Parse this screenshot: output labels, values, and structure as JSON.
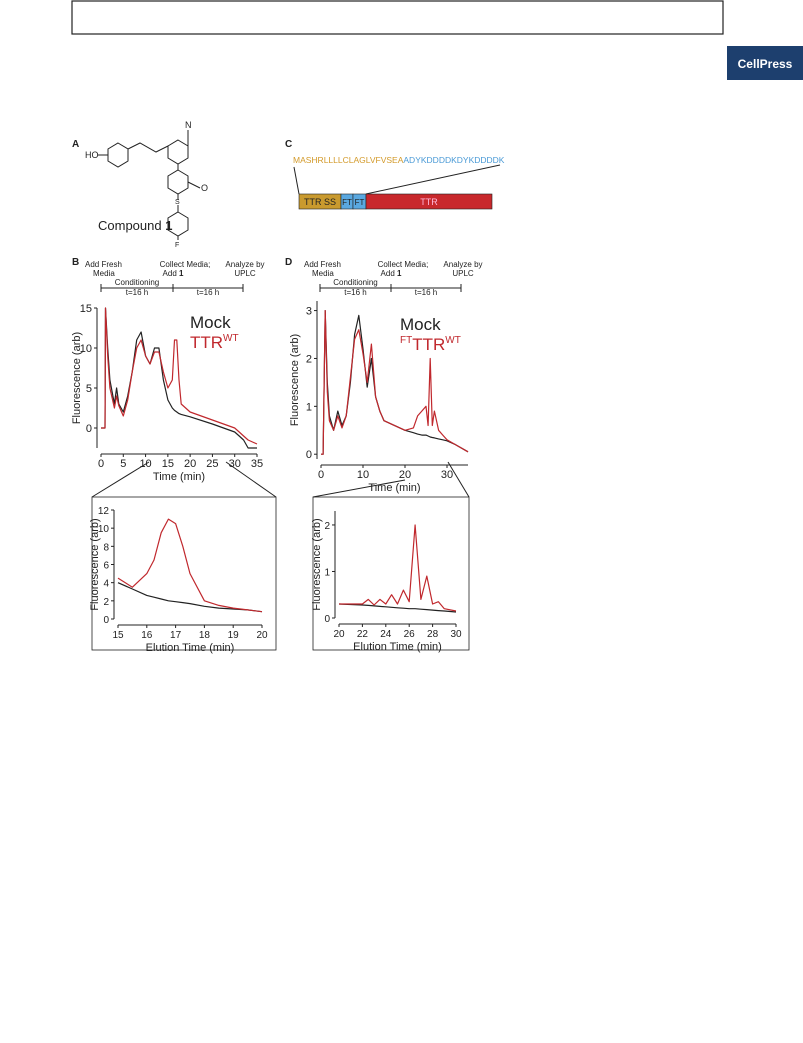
{
  "header": {
    "logo": "CellPress"
  },
  "panels": {
    "a": {
      "letter": "A",
      "atoms": {
        "ho": "HO",
        "n": "N",
        "o": "O",
        "s": "S",
        "f": "F"
      },
      "caption": "Compound",
      "caption_number": "1"
    },
    "c": {
      "letter": "C",
      "sequence_signal": "MASHRLLLLCLAGLVFVSEA",
      "sequence_tag": "ADYKDDDDKDYKDDDDK",
      "segments": [
        "TTR SS",
        "FT",
        "FT",
        "TTR"
      ]
    },
    "b": {
      "letter": "B",
      "timeline": {
        "step1": "Add Fresh",
        "step1b": "Media",
        "step2": "Collect Media;",
        "step2b": "Add",
        "step2c": "1",
        "step3": "Analyze by",
        "step3b": "UPLC",
        "phase1": "Conditioning",
        "duration1": "t=16 h",
        "duration2": "t=16 h"
      }
    },
    "d": {
      "letter": "D",
      "timeline": {
        "step1": "Add Fresh",
        "step1b": "Media",
        "step2": "Collect Media;",
        "step2b": "Add",
        "step2c": "1",
        "step3": "Analyze by",
        "step3b": "UPLC",
        "phase1": "Conditioning",
        "duration1": "t=16 h",
        "duration2": "t=16 h"
      }
    }
  },
  "chart_data": [
    {
      "type": "line",
      "x_label": "Time (min)",
      "y_label": "Fluorescence (arb)",
      "x": [
        0,
        0.9,
        1,
        1.5,
        2,
        3,
        3.5,
        4,
        5,
        6,
        7,
        8,
        9,
        10,
        11,
        12,
        13,
        14,
        15,
        16,
        16.5,
        17,
        17.5,
        18,
        20,
        25,
        30,
        31,
        32,
        33,
        35
      ],
      "series": [
        {
          "name": "Mock",
          "color": "#222222",
          "values": [
            0,
            0,
            15,
            10,
            6,
            3,
            5,
            3,
            2,
            4,
            7,
            11,
            12,
            9,
            8,
            10,
            10,
            6,
            3.5,
            2.5,
            2.2,
            2,
            1.8,
            1.7,
            1.4,
            0.5,
            -0.5,
            -1,
            -1.5,
            -2.5,
            -2.5
          ]
        },
        {
          "name": "TTR",
          "name_sup": "WT",
          "color": "#c0282d",
          "values": [
            0,
            0,
            15,
            9,
            5,
            2.5,
            4,
            2.8,
            1.5,
            3.5,
            7,
            10,
            11,
            9,
            8,
            9.5,
            9.5,
            7,
            5,
            6,
            11,
            11,
            6,
            3,
            2,
            1,
            0,
            -0.5,
            -1,
            -1.5,
            -2
          ]
        }
      ],
      "xlim": [
        0,
        35
      ],
      "ylim": [
        -2.5,
        15
      ],
      "xticks": [
        0,
        5,
        10,
        15,
        20,
        25,
        30,
        35
      ],
      "yticks": [
        0,
        5,
        10,
        15
      ]
    },
    {
      "type": "line",
      "x_label": "Time (min)",
      "y_label": "Fluorescence (arb)",
      "x": [
        0,
        0.5,
        1,
        1.5,
        2,
        3,
        4,
        5,
        6,
        7,
        8,
        9,
        10,
        11,
        12,
        13,
        14,
        15,
        20,
        22,
        23,
        24,
        25,
        25.5,
        26,
        26.5,
        27,
        28,
        29,
        30,
        32,
        35
      ],
      "series": [
        {
          "name": "Mock",
          "color": "#222222",
          "values": [
            0,
            0,
            3,
            1.5,
            0.8,
            0.5,
            0.9,
            0.6,
            0.8,
            1.5,
            2.5,
            2.9,
            2.2,
            1.4,
            2,
            1.2,
            0.9,
            0.7,
            0.5,
            0.45,
            0.42,
            0.4,
            0.4,
            0.38,
            0.36,
            0.35,
            0.34,
            0.32,
            0.3,
            0.28,
            0.2,
            0.05
          ]
        },
        {
          "name": "TTR",
          "name_pre": "FT",
          "name_sup": "WT",
          "color": "#c0282d",
          "values": [
            0,
            0,
            3,
            1.3,
            0.7,
            0.5,
            0.8,
            0.55,
            0.8,
            1.6,
            2.4,
            2.6,
            2.1,
            1.5,
            2.3,
            1.2,
            0.9,
            0.7,
            0.5,
            0.55,
            0.8,
            0.9,
            1,
            0.6,
            2,
            0.6,
            0.9,
            0.5,
            0.4,
            0.3,
            0.2,
            0.05
          ]
        }
      ],
      "xlim": [
        0,
        35
      ],
      "ylim": [
        -0.1,
        3.2
      ],
      "xticks": [
        0,
        10,
        20,
        30
      ],
      "yticks": [
        0,
        1,
        2,
        3
      ]
    },
    {
      "type": "line",
      "x_label": "Elution Time (min)",
      "y_label": "Fluorescence (arb)",
      "x": [
        15,
        15.5,
        16,
        16.25,
        16.5,
        16.75,
        17,
        17.25,
        17.5,
        18,
        18.5,
        19,
        19.5,
        20
      ],
      "series": [
        {
          "color": "#222222",
          "values": [
            4,
            3.3,
            2.6,
            2.4,
            2.2,
            2,
            1.9,
            1.8,
            1.7,
            1.4,
            1.2,
            1.1,
            1,
            0.8
          ]
        },
        {
          "color": "#c0282d",
          "values": [
            4.5,
            3.5,
            5,
            6.5,
            9.5,
            11,
            10.5,
            8,
            5,
            2,
            1.5,
            1.2,
            1,
            0.8
          ]
        }
      ],
      "xlim": [
        15,
        20
      ],
      "ylim": [
        0,
        12
      ],
      "xticks": [
        15,
        16,
        17,
        18,
        19,
        20
      ],
      "yticks": [
        0,
        2,
        4,
        6,
        8,
        10,
        12
      ]
    },
    {
      "type": "line",
      "x_label": "Elution Time (min)",
      "y_label": "Fluorescence (arb)",
      "x": [
        20,
        21,
        22,
        22.5,
        23,
        23.5,
        24,
        24.5,
        25,
        25.5,
        26,
        26.5,
        27,
        27.5,
        28,
        28.5,
        29,
        30
      ],
      "series": [
        {
          "color": "#222222",
          "values": [
            0.3,
            0.29,
            0.28,
            0.27,
            0.26,
            0.25,
            0.24,
            0.23,
            0.22,
            0.21,
            0.2,
            0.2,
            0.19,
            0.18,
            0.17,
            0.16,
            0.15,
            0.13
          ]
        },
        {
          "color": "#c0282d",
          "values": [
            0.3,
            0.3,
            0.3,
            0.4,
            0.28,
            0.4,
            0.3,
            0.5,
            0.3,
            0.6,
            0.35,
            2,
            0.4,
            0.9,
            0.3,
            0.35,
            0.2,
            0.15
          ]
        }
      ],
      "xlim": [
        20,
        30
      ],
      "ylim": [
        0,
        2.3
      ],
      "xticks": [
        20,
        22,
        24,
        26,
        28,
        30
      ],
      "yticks": [
        0,
        1,
        2
      ]
    }
  ]
}
